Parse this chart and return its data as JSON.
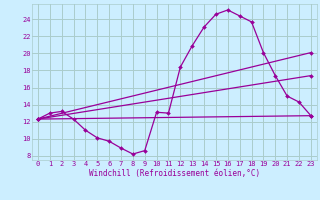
{
  "xlabel": "Windchill (Refroidissement éolien,°C)",
  "bg_color": "#cceeff",
  "grid_color": "#aacccc",
  "line_color": "#990099",
  "xlim": [
    -0.5,
    23.5
  ],
  "ylim": [
    7.5,
    25.8
  ],
  "yticks": [
    8,
    10,
    12,
    14,
    16,
    18,
    20,
    22,
    24
  ],
  "xticks": [
    0,
    1,
    2,
    3,
    4,
    5,
    6,
    7,
    8,
    9,
    10,
    11,
    12,
    13,
    14,
    15,
    16,
    17,
    18,
    19,
    20,
    21,
    22,
    23
  ],
  "series": [
    {
      "x": [
        0,
        1,
        2,
        3,
        4,
        5,
        6,
        7,
        8,
        9,
        10,
        11,
        12,
        13,
        14,
        15,
        16,
        17,
        18,
        19,
        20,
        21,
        22,
        23
      ],
      "y": [
        12.3,
        13.0,
        13.2,
        12.3,
        11.0,
        10.1,
        9.7,
        8.9,
        8.2,
        8.6,
        13.1,
        13.0,
        18.4,
        20.9,
        23.1,
        24.6,
        25.1,
        24.4,
        23.7,
        20.1,
        17.4,
        15.0,
        14.3,
        12.7
      ]
    },
    {
      "x": [
        0,
        23
      ],
      "y": [
        12.3,
        12.7
      ]
    },
    {
      "x": [
        0,
        23
      ],
      "y": [
        12.3,
        20.1
      ]
    },
    {
      "x": [
        0,
        23
      ],
      "y": [
        12.3,
        17.4
      ]
    }
  ]
}
